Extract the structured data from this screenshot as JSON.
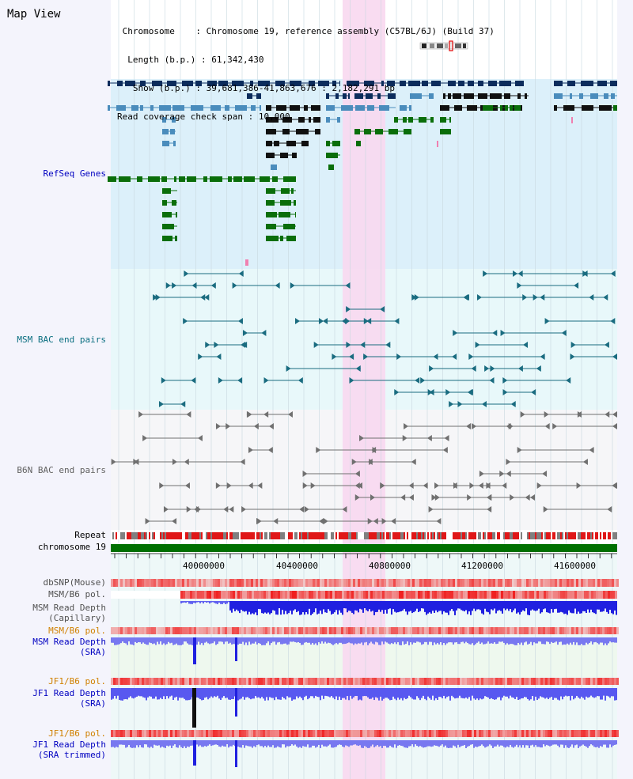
{
  "header": {
    "title": "Map View",
    "chromosome_label": "Chromosome",
    "chromosome_value": "Chromosome 19, reference assembly (C57BL/6J) (Build 37)",
    "length_label": "Length (b.p.)",
    "length_value": "61,342,430",
    "show_label": "Show (b.p.)",
    "show_value": "39,681,386-41,863,676 : 2,182,291 bp",
    "coverage_label": "Read coverage check span",
    "coverage_value": "10,000"
  },
  "tracks": {
    "refseq": "RefSeq Genes",
    "msm_bac": "MSM BAC end pairs",
    "b6n_bac": "B6N BAC end pairs",
    "repeat": "Repeat",
    "chromosome": "chromosome 19",
    "dbsnp": "dbSNP(Mouse)",
    "msm_b6_pol_1": "MSM/B6 pol.",
    "msm_depth_cap_1": "MSM Read Depth",
    "msm_depth_cap_2": "(Capillary)",
    "msm_b6_pol_2": "MSM/B6 pol.",
    "msm_depth_sra_1": "MSM Read Depth",
    "msm_depth_sra_2": "(SRA)",
    "jf1_b6_pol_1": "JF1/B6 pol.",
    "jf1_depth_sra_1": "JF1 Read Depth",
    "jf1_depth_sra_2": "(SRA)",
    "jf1_b6_pol_2": "JF1/B6 pol.",
    "jf1_depth_trim_1": "JF1 Read Depth",
    "jf1_depth_trim_2": "(SRA trimmed)"
  },
  "axis": {
    "ticks": [
      "40000000",
      "40400000",
      "40800000",
      "41200000",
      "41600000"
    ]
  },
  "colors": {
    "highlight": "#f8d8f0",
    "refseq_bg": "#dcf0fa",
    "msm_bg": "#e8f8fa",
    "b6n_bg": "#f6f6f8",
    "gene_dark": "#0c2c5c",
    "gene_mid": "#4a8cbc",
    "gene_green": "#0a6e0a",
    "msm_line": "#1a6c80",
    "b6n_line": "#707070",
    "repeat_red": "#e01818",
    "chrom_green": "#007000",
    "depth_blue": "#2020e0",
    "depth_lightblue": "#7878f0",
    "label_blue": "#0000c0",
    "label_orange": "#d08000",
    "label_gray": "#505050"
  }
}
